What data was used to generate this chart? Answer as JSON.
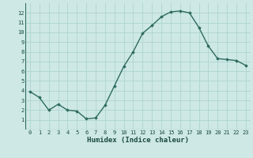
{
  "x": [
    0,
    1,
    2,
    3,
    4,
    5,
    6,
    7,
    8,
    9,
    10,
    11,
    12,
    13,
    14,
    15,
    16,
    17,
    18,
    19,
    20,
    21,
    22,
    23
  ],
  "y": [
    3.9,
    3.3,
    2.0,
    2.6,
    2.0,
    1.9,
    1.1,
    1.2,
    2.5,
    4.5,
    6.5,
    8.0,
    9.9,
    10.7,
    11.6,
    12.1,
    12.2,
    12.0,
    10.5,
    8.6,
    7.3,
    7.2,
    7.1,
    6.6
  ],
  "xlabel": "Humidex (Indice chaleur)",
  "ylim": [
    0,
    13
  ],
  "xlim": [
    -0.5,
    23.5
  ],
  "yticks": [
    1,
    2,
    3,
    4,
    5,
    6,
    7,
    8,
    9,
    10,
    11,
    12
  ],
  "xticks": [
    0,
    1,
    2,
    3,
    4,
    5,
    6,
    7,
    8,
    9,
    10,
    11,
    12,
    13,
    14,
    15,
    16,
    17,
    18,
    19,
    20,
    21,
    22,
    23
  ],
  "line_color": "#2E6B5E",
  "marker": "D",
  "marker_size": 1.8,
  "bg_color": "#cde8e5",
  "grid_color": "#afd4d0",
  "line_width": 1.0,
  "tick_fontsize": 5.0,
  "xlabel_fontsize": 6.5
}
